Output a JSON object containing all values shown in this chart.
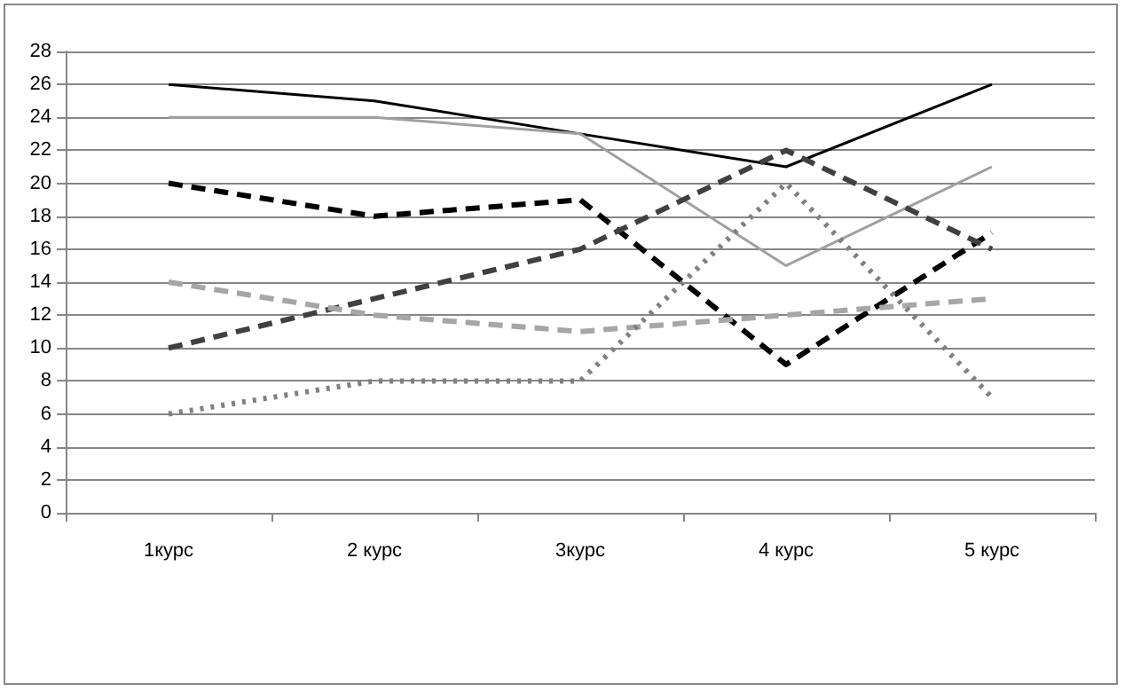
{
  "chart_data": {
    "type": "line",
    "categories": [
      "1курс",
      "2 курс",
      "3курс",
      "4 курс",
      "5 курс"
    ],
    "series": [
      {
        "color": "#000000",
        "line_style": "solid",
        "values": [
          26,
          25,
          23,
          21,
          26
        ]
      },
      {
        "color": "#a0a0a0",
        "line_style": "solid",
        "values": [
          24,
          24,
          23,
          15,
          21
        ]
      },
      {
        "color": "#000000",
        "line_style": "dashed",
        "values": [
          20,
          18,
          19,
          9,
          17
        ]
      },
      {
        "color": "#404040",
        "line_style": "dashed",
        "values": [
          10,
          13,
          16,
          22,
          16
        ]
      },
      {
        "color": "#a6a6a6",
        "line_style": "dashed",
        "values": [
          14,
          12,
          11,
          12,
          13
        ]
      },
      {
        "color": "#808080",
        "line_style": "dotted",
        "values": [
          6,
          8,
          8,
          20,
          7
        ]
      }
    ],
    "ylim": [
      0,
      28
    ],
    "yticks": [
      0,
      2,
      4,
      6,
      8,
      10,
      12,
      14,
      16,
      18,
      20,
      22,
      24,
      26,
      28
    ],
    "grid": "y",
    "marker": "none"
  }
}
